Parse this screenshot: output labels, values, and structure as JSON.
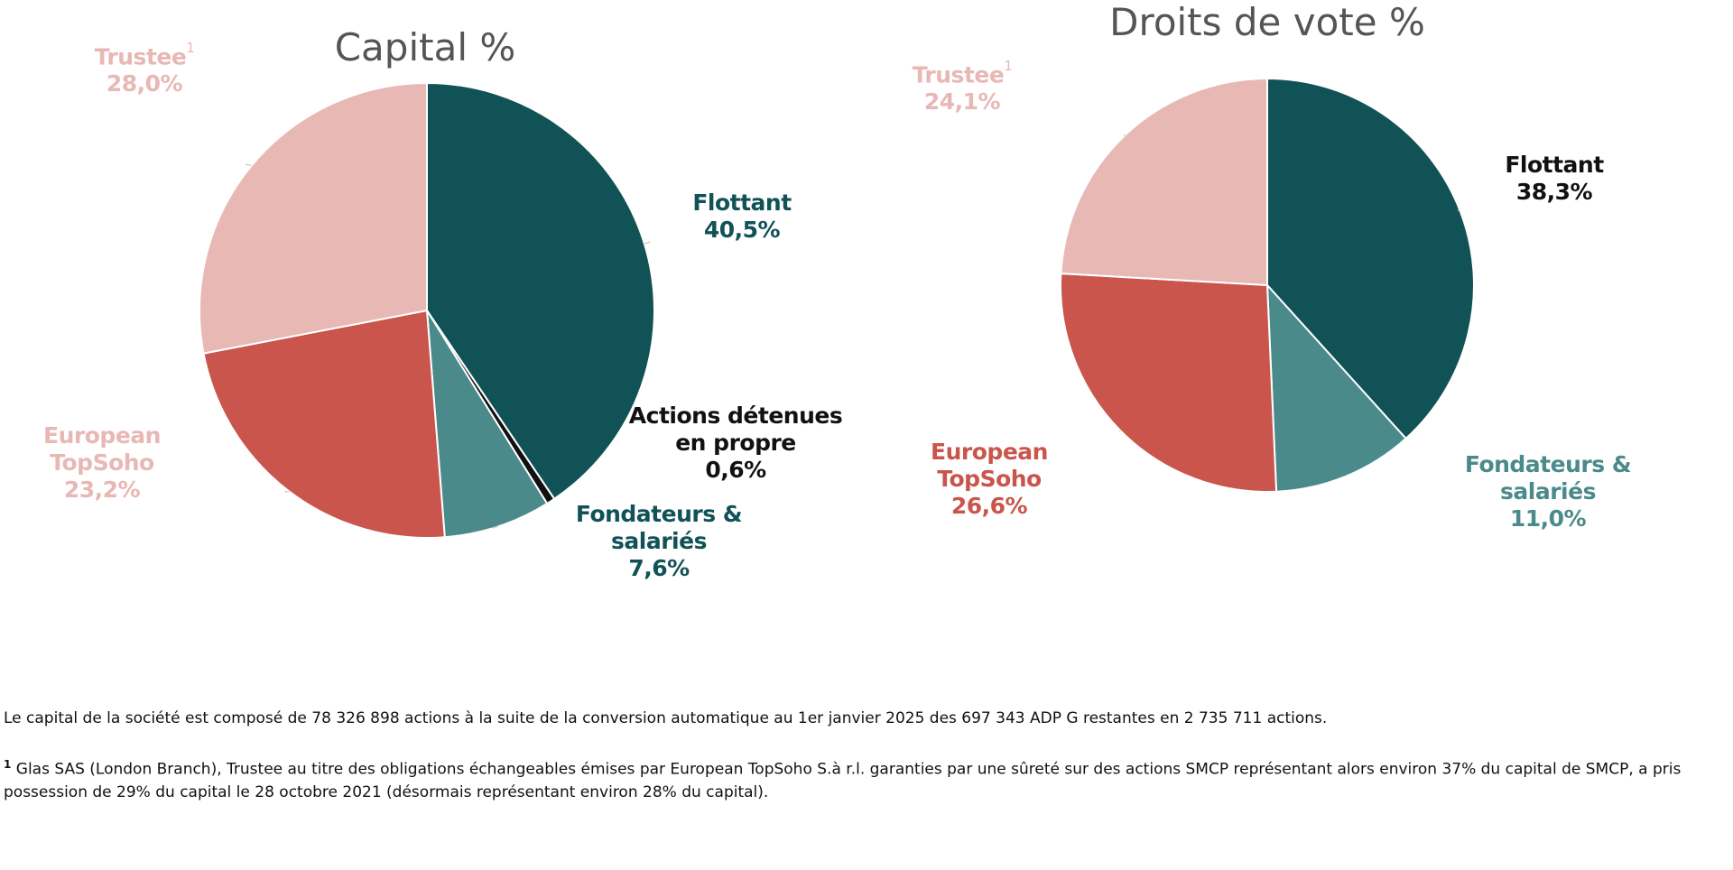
{
  "charts": [
    {
      "chart_data": {
        "type": "pie",
        "title": "Capital %",
        "categories": [
          "Flottant",
          "Actions détenues en propre",
          "Fondateurs & salariés",
          "European TopSoho",
          "Trustee"
        ],
        "values": [
          40.5,
          0.6,
          7.6,
          23.2,
          28.0
        ],
        "value_labels": [
          "40,5%",
          "0,6%",
          "7,6%",
          "23,2%",
          "28,0%"
        ],
        "colors": [
          "#115257",
          "#111111",
          "#4b8a8b",
          "#c9554c",
          "#e8b8b5"
        ],
        "label_colors": [
          "#115257",
          "#111111",
          "#115257",
          "#e8b8b5",
          "#e8b8b5"
        ],
        "footnote_marker": "1"
      }
    },
    {
      "chart_data": {
        "type": "pie",
        "title": "Droits de vote %",
        "categories": [
          "Flottant",
          "Fondateurs & salariés",
          "European TopSoho",
          "Trustee"
        ],
        "values": [
          38.3,
          11.0,
          26.6,
          24.1
        ],
        "value_labels": [
          "38,3%",
          "11,0%",
          "26,6%",
          "24,1%"
        ],
        "colors": [
          "#115257",
          "#4b8a8b",
          "#c9554c",
          "#e8b8b5"
        ],
        "label_colors": [
          "#111111",
          "#4b8a8b",
          "#c9554c",
          "#e8b8b5"
        ],
        "footnote_marker": "1"
      }
    }
  ],
  "notes": {
    "capital": "Le capital de la société est composé de 78 326 898 actions à la suite de la conversion automatique au 1er janvier 2025 des 697 343 ADP G restantes en 2 735 711 actions.",
    "footnote_marker": "1",
    "footnote": "Glas SAS (London Branch), Trustee au titre des obligations échangeables émises par European TopSoho S.à r.l. garanties par une sûreté sur des actions SMCP représentant alors environ 37% du capital de SMCP, a pris possession de 29% du capital le 28 octobre 2021 (désormais représentant environ 28% du capital)."
  }
}
